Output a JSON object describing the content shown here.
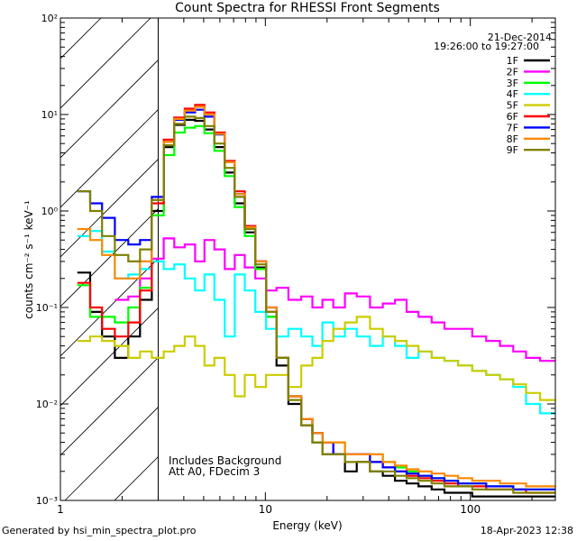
{
  "chart_data": {
    "type": "line",
    "title": "Count Spectra for RHESSI Front Segments",
    "xlabel": "Energy (keV)",
    "ylabel": "counts cm⁻² s⁻¹ keV⁻¹",
    "xscale": "log",
    "yscale": "log",
    "xlim": [
      1,
      260
    ],
    "ylim": [
      0.001,
      100
    ],
    "x_tick_labels": [
      "1",
      "10",
      "100"
    ],
    "y_tick_labels": [
      "10⁻³",
      "10⁻²",
      "10⁻¹",
      "10⁰",
      "10¹",
      "10²"
    ],
    "hatched_region_kev": [
      1,
      3
    ],
    "date": "21-Dec-2014",
    "time_range": "19:26:00 to 19:27:00",
    "notes": [
      "Includes Background",
      "Att A0, FDecim 3"
    ],
    "energy_kev": [
      1.3,
      1.5,
      1.7,
      2.0,
      2.3,
      2.6,
      3.0,
      3.4,
      3.8,
      4.3,
      4.8,
      5.3,
      6.0,
      6.7,
      7.5,
      8.4,
      9.5,
      10.7,
      12,
      14,
      16,
      18,
      20,
      23,
      26,
      30,
      35,
      40,
      46,
      52,
      60,
      70,
      80,
      95,
      110,
      130,
      150,
      175,
      200,
      240
    ],
    "series": [
      {
        "name": "1F",
        "color": "#000000",
        "values": [
          0.23,
          0.09,
          0.05,
          0.03,
          0.05,
          0.12,
          1.0,
          4.6,
          7.8,
          8.8,
          8.6,
          7.0,
          4.6,
          2.5,
          1.2,
          0.6,
          0.26,
          0.08,
          0.025,
          0.01,
          0.006,
          0.004,
          0.003,
          0.003,
          0.002,
          0.0025,
          0.002,
          0.0018,
          0.0016,
          0.0015,
          0.0014,
          0.0013,
          0.0012,
          0.0012,
          0.0011,
          0.0011,
          0.0011,
          0.0011,
          0.0011,
          0.0011
        ]
      },
      {
        "name": "2F",
        "color": "#ff00ff",
        "values": [
          0.0,
          0.0,
          0.0,
          0.12,
          0.13,
          0.2,
          0.32,
          0.52,
          0.42,
          0.45,
          0.3,
          0.5,
          0.4,
          0.25,
          0.35,
          0.26,
          0.2,
          0.15,
          0.16,
          0.12,
          0.13,
          0.1,
          0.12,
          0.1,
          0.14,
          0.13,
          0.1,
          0.11,
          0.12,
          0.09,
          0.08,
          0.07,
          0.06,
          0.06,
          0.05,
          0.045,
          0.04,
          0.035,
          0.03,
          0.028
        ]
      },
      {
        "name": "3F",
        "color": "#00ff00",
        "values": [
          0.17,
          0.08,
          0.08,
          0.07,
          0.1,
          0.16,
          0.9,
          3.8,
          6.5,
          7.3,
          7.6,
          6.4,
          4.2,
          2.3,
          1.1,
          0.55,
          0.25,
          0.08,
          0.03,
          0.012,
          0.007,
          0.005,
          0.004,
          0.004,
          0.003,
          0.003,
          0.003,
          0.0025,
          0.0022,
          0.002,
          0.0018,
          0.0017,
          0.0016,
          0.0015,
          0.0015,
          0.0014,
          0.0014,
          0.0013,
          0.0013,
          0.0013
        ]
      },
      {
        "name": "4F",
        "color": "#00ffff",
        "values": [
          0.55,
          0.62,
          0.38,
          0.2,
          0.22,
          0.25,
          0.3,
          0.25,
          0.28,
          0.2,
          0.15,
          0.22,
          0.12,
          0.05,
          0.22,
          0.15,
          0.09,
          0.06,
          0.05,
          0.06,
          0.05,
          0.04,
          0.07,
          0.05,
          0.06,
          0.05,
          0.04,
          0.05,
          0.04,
          0.03,
          0.035,
          0.03,
          0.028,
          0.025,
          0.022,
          0.02,
          0.018,
          0.015,
          0.01,
          0.008
        ]
      },
      {
        "name": "5F",
        "color": "#cccc00",
        "values": [
          0.045,
          0.05,
          0.045,
          0.04,
          0.03,
          0.035,
          0.03,
          0.035,
          0.04,
          0.05,
          0.04,
          0.025,
          0.03,
          0.02,
          0.012,
          0.02,
          0.015,
          0.02,
          0.02,
          0.015,
          0.025,
          0.03,
          0.045,
          0.06,
          0.07,
          0.08,
          0.06,
          0.05,
          0.045,
          0.04,
          0.035,
          0.03,
          0.028,
          0.025,
          0.022,
          0.02,
          0.018,
          0.016,
          0.013,
          0.011
        ]
      },
      {
        "name": "6F",
        "color": "#ff0000",
        "values": [
          0.18,
          0.1,
          0.06,
          0.05,
          0.07,
          0.15,
          1.2,
          5.5,
          9.3,
          11.5,
          12.6,
          10.5,
          6.5,
          3.3,
          1.6,
          0.7,
          0.3,
          0.09,
          0.03,
          0.012,
          0.007,
          0.005,
          0.004,
          0.003,
          0.003,
          0.003,
          0.0025,
          0.0022,
          0.002,
          0.0018,
          0.0017,
          0.0016,
          0.0015,
          0.0014,
          0.0014,
          0.0013,
          0.0013,
          0.0013,
          0.0012,
          0.0012
        ]
      },
      {
        "name": "7F",
        "color": "#0000ff",
        "values": [
          1.6,
          1.2,
          0.85,
          0.5,
          0.45,
          0.5,
          1.4,
          5.2,
          8.8,
          10.5,
          11.2,
          9.5,
          6.2,
          3.2,
          1.5,
          0.68,
          0.3,
          0.1,
          0.03,
          0.012,
          0.007,
          0.005,
          0.004,
          0.003,
          0.003,
          0.003,
          0.0025,
          0.0022,
          0.002,
          0.0019,
          0.0018,
          0.0017,
          0.0016,
          0.0015,
          0.0015,
          0.0014,
          0.0014,
          0.0013,
          0.0013,
          0.0013
        ]
      },
      {
        "name": "8F",
        "color": "#ff8800",
        "values": [
          0.65,
          0.5,
          0.35,
          0.2,
          0.2,
          0.3,
          1.3,
          5.2,
          9.0,
          11.0,
          12.0,
          10.0,
          6.3,
          3.2,
          1.5,
          0.68,
          0.3,
          0.1,
          0.03,
          0.012,
          0.007,
          0.005,
          0.004,
          0.004,
          0.003,
          0.003,
          0.003,
          0.0025,
          0.0023,
          0.0021,
          0.002,
          0.0019,
          0.0018,
          0.0017,
          0.0016,
          0.0016,
          0.0015,
          0.0015,
          0.0014,
          0.0014
        ]
      },
      {
        "name": "9F",
        "color": "#808000",
        "values": [
          1.6,
          1.0,
          0.55,
          0.35,
          0.3,
          0.4,
          1.3,
          4.8,
          8.0,
          9.5,
          9.2,
          7.6,
          5.0,
          2.8,
          1.4,
          0.65,
          0.28,
          0.09,
          0.03,
          0.011,
          0.006,
          0.004,
          0.003,
          0.003,
          0.0025,
          0.0025,
          0.002,
          0.002,
          0.0018,
          0.0017,
          0.0016,
          0.0015,
          0.0014,
          0.0014,
          0.0013,
          0.0013,
          0.0013,
          0.0012,
          0.0012,
          0.0012
        ]
      }
    ]
  },
  "footer": {
    "generated_by": "Generated by hsi_min_spectra_plot.pro",
    "timestamp": "18-Apr-2023 12:38"
  }
}
